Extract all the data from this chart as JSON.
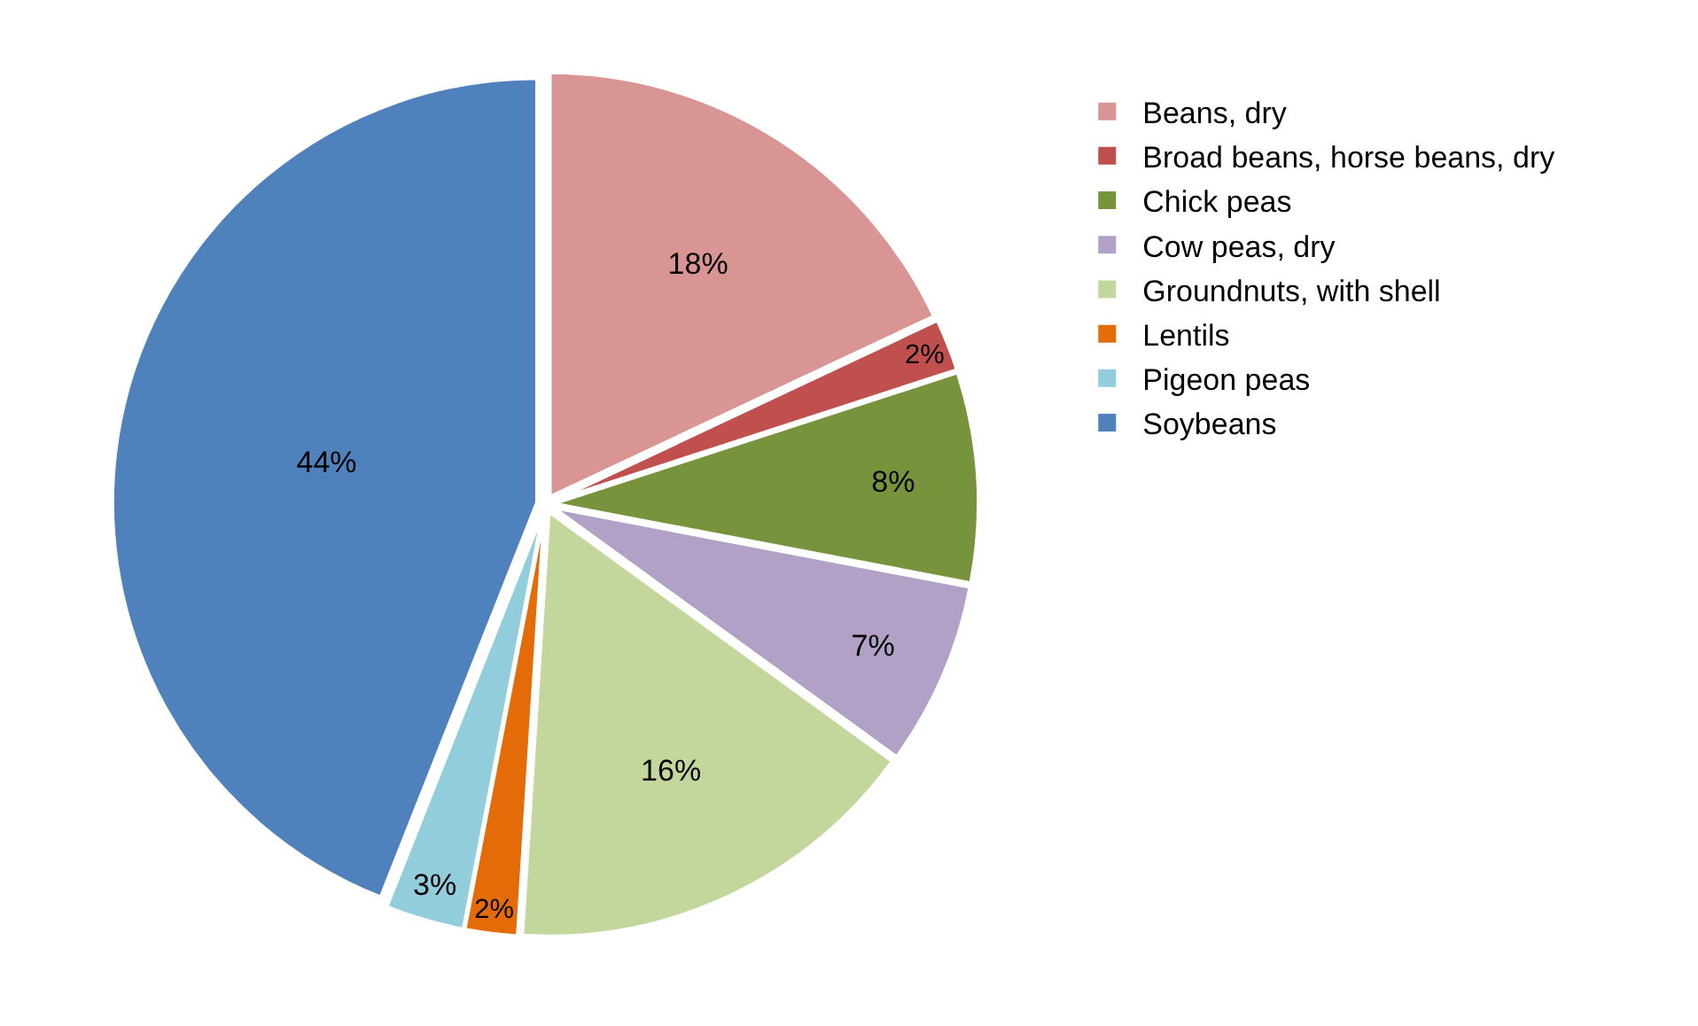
{
  "chart_data": {
    "type": "pie",
    "categories": [
      "Beans, dry",
      "Broad beans, horse beans, dry",
      "Chick peas",
      "Cow peas, dry",
      "Groundnuts, with shell",
      "Lentils",
      "Pigeon peas",
      "Soybeans"
    ],
    "values": [
      18,
      2,
      8,
      7,
      16,
      2,
      3,
      44
    ],
    "value_labels": [
      "18%",
      "2%",
      "8%",
      "7%",
      "16%",
      "2%",
      "3%",
      "44%"
    ],
    "colors": [
      "#d99594",
      "#c0504d",
      "#77933c",
      "#b2a1c7",
      "#c3d69b",
      "#e36c09",
      "#92cddc",
      "#4f81bd"
    ],
    "legend": "right"
  }
}
